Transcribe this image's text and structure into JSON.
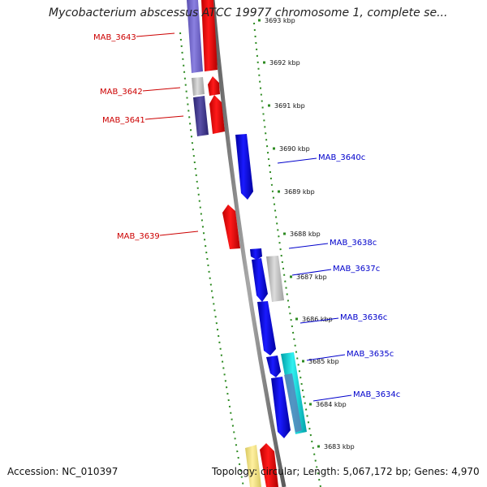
{
  "title": "Mycobacterium abscessus ATCC 19977 chromosome 1, complete se...",
  "footer": {
    "accession": "Accession: NC_010397",
    "summary": "Topology: circular; Length: 5,067,172 bp; Genes: 4,970"
  },
  "colors": {
    "forward_gene": "#ff0000",
    "reverse_gene": "#0000ee",
    "forward_label": "#cc0000",
    "reverse_label": "#0000cc",
    "backbone": "#8a8a8a",
    "tick_marks": "#2e8b22"
  },
  "ticks": [
    "3693 kbp",
    "3692 kbp",
    "3691 kbp",
    "3690 kbp",
    "3689 kbp",
    "3688 kbp",
    "3687 kbp",
    "3686 kbp",
    "3685 kbp",
    "3684 kbp",
    "3683 kbp"
  ],
  "forward_labels": [
    "MAB_3643",
    "MAB_3642",
    "MAB_3641",
    "MAB_3639"
  ],
  "reverse_labels": [
    "MAB_3640c",
    "MAB_3638c",
    "MAB_3637c",
    "MAB_3636c",
    "MAB_3635c",
    "MAB_3634c"
  ]
}
